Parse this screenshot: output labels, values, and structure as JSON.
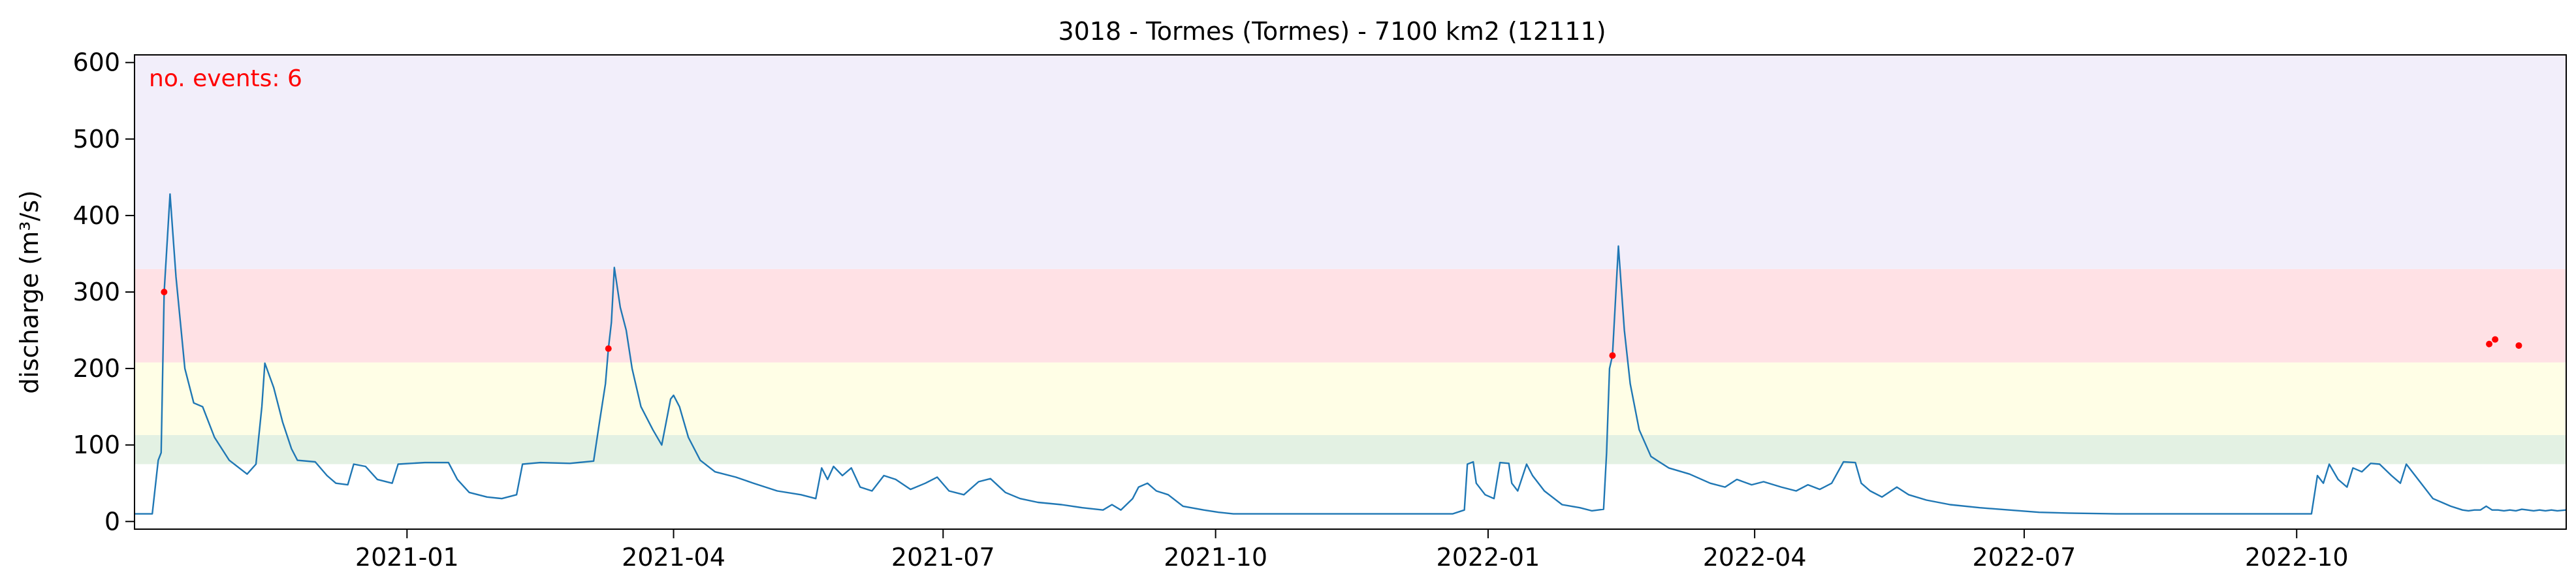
{
  "chart_data": {
    "type": "line",
    "title": "3018 - Tormes (Tormes) - 7100 km2 (12111)",
    "xlabel": "",
    "ylabel": "discharge (m³/s)",
    "x_range": [
      "2020-10-01",
      "2022-12-31"
    ],
    "ylim": [
      -10,
      610
    ],
    "yticks": [
      0,
      100,
      200,
      300,
      400,
      500,
      600
    ],
    "xticks": [
      "2021-01",
      "2021-04",
      "2021-07",
      "2021-10",
      "2022-01",
      "2022-04",
      "2022-07",
      "2022-10"
    ],
    "grid": false,
    "annotation": {
      "text": "no. events: 6",
      "color": "#ff0000",
      "position": "top-left"
    },
    "bands": [
      {
        "from": 75,
        "to": 113,
        "color": "#e3f1e3"
      },
      {
        "from": 113,
        "to": 208,
        "color": "#fffee6"
      },
      {
        "from": 208,
        "to": 330,
        "color": "#ffe1e5"
      },
      {
        "from": 330,
        "to": 610,
        "color": "#f2eefa"
      }
    ],
    "series": [
      {
        "color": "#1f77b4",
        "points": [
          [
            "2020-10-01",
            10
          ],
          [
            "2020-10-07",
            10
          ],
          [
            "2020-10-09",
            80
          ],
          [
            "2020-10-10",
            90
          ],
          [
            "2020-10-11",
            300
          ],
          [
            "2020-10-13",
            428
          ],
          [
            "2020-10-15",
            320
          ],
          [
            "2020-10-18",
            200
          ],
          [
            "2020-10-21",
            155
          ],
          [
            "2020-10-24",
            150
          ],
          [
            "2020-10-28",
            110
          ],
          [
            "2020-11-02",
            80
          ],
          [
            "2020-11-08",
            62
          ],
          [
            "2020-11-11",
            75
          ],
          [
            "2020-11-13",
            150
          ],
          [
            "2020-11-14",
            207
          ],
          [
            "2020-11-17",
            175
          ],
          [
            "2020-11-20",
            130
          ],
          [
            "2020-11-23",
            95
          ],
          [
            "2020-11-25",
            80
          ],
          [
            "2020-12-01",
            78
          ],
          [
            "2020-12-05",
            60
          ],
          [
            "2020-12-08",
            50
          ],
          [
            "2020-12-12",
            48
          ],
          [
            "2020-12-14",
            75
          ],
          [
            "2020-12-18",
            72
          ],
          [
            "2020-12-22",
            55
          ],
          [
            "2020-12-27",
            50
          ],
          [
            "2020-12-29",
            75
          ],
          [
            "2021-01-07",
            77
          ],
          [
            "2021-01-15",
            77
          ],
          [
            "2021-01-18",
            55
          ],
          [
            "2021-01-22",
            38
          ],
          [
            "2021-01-28",
            32
          ],
          [
            "2021-02-02",
            30
          ],
          [
            "2021-02-07",
            35
          ],
          [
            "2021-02-09",
            75
          ],
          [
            "2021-02-15",
            77
          ],
          [
            "2021-02-25",
            76
          ],
          [
            "2021-03-05",
            79
          ],
          [
            "2021-03-07",
            130
          ],
          [
            "2021-03-09",
            180
          ],
          [
            "2021-03-10",
            226
          ],
          [
            "2021-03-11",
            260
          ],
          [
            "2021-03-12",
            332
          ],
          [
            "2021-03-14",
            280
          ],
          [
            "2021-03-16",
            250
          ],
          [
            "2021-03-18",
            200
          ],
          [
            "2021-03-21",
            150
          ],
          [
            "2021-03-25",
            120
          ],
          [
            "2021-03-28",
            100
          ],
          [
            "2021-03-31",
            160
          ],
          [
            "2021-04-01",
            165
          ],
          [
            "2021-04-03",
            150
          ],
          [
            "2021-04-06",
            110
          ],
          [
            "2021-04-10",
            80
          ],
          [
            "2021-04-15",
            65
          ],
          [
            "2021-04-22",
            58
          ],
          [
            "2021-04-28",
            50
          ],
          [
            "2021-05-06",
            40
          ],
          [
            "2021-05-14",
            35
          ],
          [
            "2021-05-19",
            30
          ],
          [
            "2021-05-21",
            70
          ],
          [
            "2021-05-23",
            55
          ],
          [
            "2021-05-25",
            72
          ],
          [
            "2021-05-28",
            60
          ],
          [
            "2021-05-31",
            70
          ],
          [
            "2021-06-03",
            45
          ],
          [
            "2021-06-07",
            40
          ],
          [
            "2021-06-11",
            60
          ],
          [
            "2021-06-15",
            55
          ],
          [
            "2021-06-20",
            42
          ],
          [
            "2021-06-25",
            50
          ],
          [
            "2021-06-29",
            58
          ],
          [
            "2021-07-03",
            40
          ],
          [
            "2021-07-08",
            35
          ],
          [
            "2021-07-13",
            52
          ],
          [
            "2021-07-17",
            56
          ],
          [
            "2021-07-22",
            38
          ],
          [
            "2021-07-27",
            30
          ],
          [
            "2021-08-02",
            25
          ],
          [
            "2021-08-10",
            22
          ],
          [
            "2021-08-17",
            18
          ],
          [
            "2021-08-24",
            15
          ],
          [
            "2021-08-27",
            22
          ],
          [
            "2021-08-30",
            15
          ],
          [
            "2021-09-03",
            30
          ],
          [
            "2021-09-05",
            45
          ],
          [
            "2021-09-08",
            50
          ],
          [
            "2021-09-11",
            40
          ],
          [
            "2021-09-15",
            35
          ],
          [
            "2021-09-20",
            20
          ],
          [
            "2021-09-27",
            15
          ],
          [
            "2021-10-02",
            12
          ],
          [
            "2021-10-07",
            10
          ],
          [
            "2021-10-25",
            10
          ],
          [
            "2021-11-10",
            10
          ],
          [
            "2021-11-25",
            10
          ],
          [
            "2021-12-10",
            10
          ],
          [
            "2021-12-20",
            10
          ],
          [
            "2021-12-24",
            15
          ],
          [
            "2021-12-25",
            75
          ],
          [
            "2021-12-27",
            78
          ],
          [
            "2021-12-28",
            50
          ],
          [
            "2021-12-31",
            35
          ],
          [
            "2022-01-03",
            30
          ],
          [
            "2022-01-05",
            77
          ],
          [
            "2022-01-08",
            76
          ],
          [
            "2022-01-09",
            50
          ],
          [
            "2022-01-11",
            40
          ],
          [
            "2022-01-14",
            75
          ],
          [
            "2022-01-16",
            60
          ],
          [
            "2022-01-20",
            40
          ],
          [
            "2022-01-26",
            22
          ],
          [
            "2022-02-01",
            18
          ],
          [
            "2022-02-05",
            14
          ],
          [
            "2022-02-09",
            16
          ],
          [
            "2022-02-10",
            90
          ],
          [
            "2022-02-11",
            200
          ],
          [
            "2022-02-12",
            217
          ],
          [
            "2022-02-14",
            360
          ],
          [
            "2022-02-16",
            250
          ],
          [
            "2022-02-18",
            180
          ],
          [
            "2022-02-21",
            120
          ],
          [
            "2022-02-25",
            85
          ],
          [
            "2022-03-03",
            70
          ],
          [
            "2022-03-10",
            62
          ],
          [
            "2022-03-17",
            50
          ],
          [
            "2022-03-22",
            45
          ],
          [
            "2022-03-26",
            55
          ],
          [
            "2022-03-31",
            48
          ],
          [
            "2022-04-04",
            52
          ],
          [
            "2022-04-10",
            45
          ],
          [
            "2022-04-15",
            40
          ],
          [
            "2022-04-19",
            48
          ],
          [
            "2022-04-23",
            42
          ],
          [
            "2022-04-27",
            50
          ],
          [
            "2022-05-01",
            78
          ],
          [
            "2022-05-05",
            77
          ],
          [
            "2022-05-07",
            50
          ],
          [
            "2022-05-10",
            40
          ],
          [
            "2022-05-14",
            32
          ],
          [
            "2022-05-19",
            45
          ],
          [
            "2022-05-23",
            35
          ],
          [
            "2022-05-29",
            28
          ],
          [
            "2022-06-06",
            22
          ],
          [
            "2022-06-16",
            18
          ],
          [
            "2022-06-26",
            15
          ],
          [
            "2022-07-06",
            12
          ],
          [
            "2022-07-16",
            11
          ],
          [
            "2022-08-01",
            10
          ],
          [
            "2022-08-15",
            10
          ],
          [
            "2022-09-01",
            10
          ],
          [
            "2022-09-15",
            10
          ],
          [
            "2022-10-01",
            10
          ],
          [
            "2022-10-06",
            10
          ],
          [
            "2022-10-08",
            60
          ],
          [
            "2022-10-10",
            50
          ],
          [
            "2022-10-12",
            75
          ],
          [
            "2022-10-15",
            55
          ],
          [
            "2022-10-18",
            45
          ],
          [
            "2022-10-20",
            70
          ],
          [
            "2022-10-23",
            65
          ],
          [
            "2022-10-26",
            76
          ],
          [
            "2022-10-29",
            75
          ],
          [
            "2022-11-02",
            60
          ],
          [
            "2022-11-05",
            50
          ],
          [
            "2022-11-07",
            75
          ],
          [
            "2022-11-11",
            55
          ],
          [
            "2022-11-16",
            30
          ],
          [
            "2022-11-19",
            25
          ],
          [
            "2022-11-22",
            20
          ],
          [
            "2022-11-26",
            15
          ],
          [
            "2022-11-28",
            14
          ],
          [
            "2022-11-30",
            15
          ],
          [
            "2022-12-02",
            15
          ],
          [
            "2022-12-04",
            20
          ],
          [
            "2022-12-06",
            15
          ],
          [
            "2022-12-08",
            15
          ],
          [
            "2022-12-10",
            14
          ],
          [
            "2022-12-12",
            15
          ],
          [
            "2022-12-14",
            14
          ],
          [
            "2022-12-16",
            16
          ],
          [
            "2022-12-18",
            15
          ],
          [
            "2022-12-20",
            14
          ],
          [
            "2022-12-22",
            15
          ],
          [
            "2022-12-24",
            14
          ],
          [
            "2022-12-26",
            15
          ],
          [
            "2022-12-28",
            14
          ],
          [
            "2022-12-31",
            15
          ]
        ]
      }
    ]
  }
}
